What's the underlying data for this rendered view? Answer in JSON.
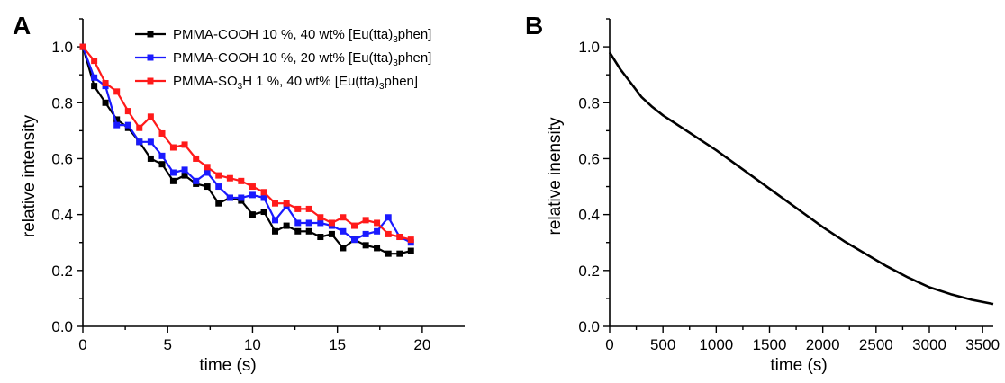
{
  "chart_data": [
    {
      "panel": "A",
      "type": "line",
      "xlabel": "time (s)",
      "ylabel": "relative intensity",
      "xlim": [
        0,
        22.5
      ],
      "ylim": [
        0,
        1.1
      ],
      "xticks": [
        "0",
        "5",
        "10",
        "15",
        "20"
      ],
      "yticks": [
        "0.0",
        "0.2",
        "0.4",
        "0.6",
        "0.8",
        "1.0"
      ],
      "legend": "top-center",
      "series": [
        {
          "name": "PMMA-COOH 10 %, 40 wt% [Eu(tta)3phen]",
          "label_main": "PMMA-COOH 10 %, 40 wt% [Eu(tta)",
          "label_sub": "3",
          "label_tail": "phen]",
          "color": "#000000",
          "x": [
            0,
            0.67,
            1.33,
            2,
            2.67,
            3.33,
            4,
            4.67,
            5.33,
            6,
            6.67,
            7.33,
            8,
            8.67,
            9.33,
            10,
            10.67,
            11.33,
            12,
            12.67,
            13.33,
            14,
            14.67,
            15.33,
            16,
            16.67,
            17.33,
            18,
            18.67,
            19.33
          ],
          "y": [
            1.0,
            0.86,
            0.8,
            0.74,
            0.71,
            0.66,
            0.6,
            0.58,
            0.52,
            0.54,
            0.51,
            0.5,
            0.44,
            0.46,
            0.45,
            0.4,
            0.41,
            0.34,
            0.36,
            0.34,
            0.34,
            0.32,
            0.33,
            0.28,
            0.31,
            0.29,
            0.28,
            0.26,
            0.26,
            0.27
          ]
        },
        {
          "name": "PMMA-COOH 10 %, 20 wt% [Eu(tta)3phen]",
          "label_main": "PMMA-COOH 10 %, 20 wt% [Eu(tta)",
          "label_sub": "3",
          "label_tail": "phen]",
          "color": "#1a1aff",
          "x": [
            0,
            0.67,
            1.33,
            2,
            2.67,
            3.33,
            4,
            4.67,
            5.33,
            6,
            6.67,
            7.33,
            8,
            8.67,
            9.33,
            10,
            10.67,
            11.33,
            12,
            12.67,
            13.33,
            14,
            14.67,
            15.33,
            16,
            16.67,
            17.33,
            18,
            18.67,
            19.33
          ],
          "y": [
            1.0,
            0.89,
            0.86,
            0.72,
            0.72,
            0.66,
            0.66,
            0.61,
            0.55,
            0.56,
            0.52,
            0.55,
            0.5,
            0.46,
            0.46,
            0.47,
            0.46,
            0.38,
            0.43,
            0.37,
            0.37,
            0.37,
            0.36,
            0.34,
            0.31,
            0.33,
            0.34,
            0.39,
            0.32,
            0.3
          ]
        },
        {
          "name": "PMMA-SO3H 1 %, 40 wt% [Eu(tta)3phen]",
          "label_main": "PMMA-SO",
          "label_sub": "3",
          "label_tail": "H 1 %,    40 wt% [Eu(tta)",
          "label_sub2": "3",
          "label_tail2": "phen]",
          "color": "#ff1a1a",
          "x": [
            0,
            0.67,
            1.33,
            2,
            2.67,
            3.33,
            4,
            4.67,
            5.33,
            6,
            6.67,
            7.33,
            8,
            8.67,
            9.33,
            10,
            10.67,
            11.33,
            12,
            12.67,
            13.33,
            14,
            14.67,
            15.33,
            16,
            16.67,
            17.33,
            18,
            18.67,
            19.33
          ],
          "y": [
            1.0,
            0.95,
            0.87,
            0.84,
            0.77,
            0.71,
            0.75,
            0.69,
            0.64,
            0.65,
            0.6,
            0.57,
            0.54,
            0.53,
            0.52,
            0.5,
            0.48,
            0.44,
            0.44,
            0.42,
            0.42,
            0.39,
            0.37,
            0.39,
            0.36,
            0.38,
            0.37,
            0.33,
            0.32,
            0.31
          ]
        }
      ]
    },
    {
      "panel": "B",
      "type": "line",
      "xlabel": "time (s)",
      "ylabel": "relative inensity",
      "xlim": [
        0,
        3600
      ],
      "ylim": [
        0,
        1.1
      ],
      "xticks": [
        "0",
        "500",
        "1000",
        "1500",
        "2000",
        "2500",
        "3000",
        "3500"
      ],
      "yticks": [
        "0.0",
        "0.2",
        "0.4",
        "0.6",
        "0.8",
        "1.0"
      ],
      "series": [
        {
          "color": "#000000",
          "x": [
            0,
            100,
            200,
            300,
            400,
            500,
            600,
            800,
            1000,
            1200,
            1400,
            1600,
            1800,
            2000,
            2200,
            2400,
            2600,
            2800,
            3000,
            3200,
            3400,
            3600
          ],
          "y": [
            0.98,
            0.92,
            0.87,
            0.82,
            0.785,
            0.755,
            0.73,
            0.68,
            0.63,
            0.575,
            0.52,
            0.465,
            0.41,
            0.355,
            0.305,
            0.26,
            0.215,
            0.175,
            0.14,
            0.115,
            0.095,
            0.08
          ]
        }
      ]
    }
  ]
}
